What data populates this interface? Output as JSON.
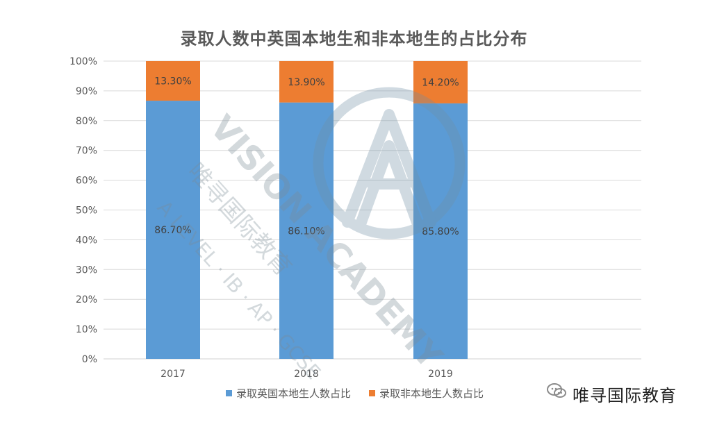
{
  "chart_data": {
    "type": "bar",
    "stacked": true,
    "title": "录取人数中英国本地生和非本地生的占比分布",
    "categories": [
      "2017",
      "2018",
      "2019"
    ],
    "series": [
      {
        "name": "录取英国本地生人数占比",
        "values": [
          86.7,
          86.1,
          85.8
        ],
        "labels": [
          "86.70%",
          "86.10%",
          "85.80%"
        ],
        "color": "#5b9bd5"
      },
      {
        "name": "录取非本地生人数占比",
        "values": [
          13.3,
          13.9,
          14.2
        ],
        "labels": [
          "13.30%",
          "13.90%",
          "14.20%"
        ],
        "color": "#ed7d31"
      }
    ],
    "y_ticks": [
      "0%",
      "10%",
      "20%",
      "30%",
      "40%",
      "50%",
      "60%",
      "70%",
      "80%",
      "90%",
      "100%"
    ],
    "ylim": [
      0,
      100
    ],
    "grid": true,
    "legend": "bottom"
  },
  "watermark": {
    "brand_text": "唯寻国际教育",
    "overlay_lines": [
      "VISION ACADEMY",
      "唯寻国际教育",
      "A LEVEL · IB · AP · GCSE"
    ]
  },
  "colors": {
    "grid": "#d9d9d9",
    "axis_text": "#595959",
    "title_text": "#595959"
  }
}
